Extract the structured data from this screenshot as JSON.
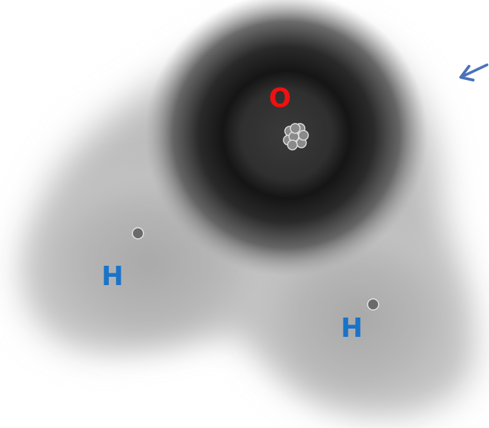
{
  "diagram": {
    "atoms": [
      {
        "symbol": "O",
        "color": "#ee1111"
      },
      {
        "symbol": "H",
        "color": "#1a73c8"
      },
      {
        "symbol": "H",
        "color": "#1a73c8"
      }
    ],
    "arrow_color": "#4a72b8",
    "electron_cloud": {
      "inner_color": "#111111",
      "outer_color": "#ffffff"
    },
    "nucleus_color": "#8a8a8a"
  }
}
